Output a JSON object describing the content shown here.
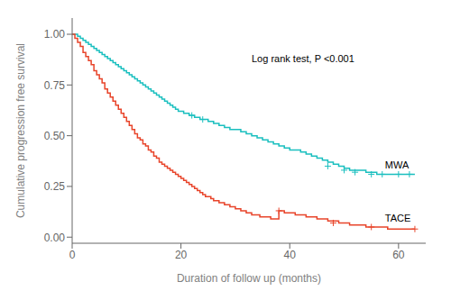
{
  "chart_data": {
    "type": "line",
    "xlabel": "Duration of follow up (months)",
    "ylabel": "Cumulative  progression free survival",
    "xlim": [
      0,
      65
    ],
    "ylim": [
      -0.03,
      1.08
    ],
    "xticks": [
      0,
      20,
      40,
      60
    ],
    "yticks": [
      {
        "value": 0,
        "label": "0.00"
      },
      0.25,
      {
        "value": 0.5,
        "label": "0.50"
      },
      0.75,
      {
        "value": 1,
        "label": "1.00"
      }
    ],
    "series": [
      {
        "type": "step",
        "color": "#1ABFBF",
        "x": [
          0,
          0.5,
          1,
          1.5,
          2,
          2.5,
          3,
          3.5,
          4,
          4.5,
          5,
          5.5,
          6,
          6.5,
          7,
          7.5,
          8,
          8.5,
          9,
          9.5,
          10,
          10.5,
          11,
          11.5,
          12,
          12.5,
          13,
          13.5,
          14,
          14.5,
          15,
          15.5,
          16,
          16.5,
          17,
          17.5,
          18,
          18.5,
          19,
          19.5,
          20,
          20.5,
          21,
          21.5,
          22,
          22.5,
          23,
          23.5,
          24,
          25,
          26,
          27,
          28,
          29,
          30,
          31,
          32,
          33,
          34,
          35,
          36,
          37,
          38,
          39,
          40,
          41,
          42,
          43,
          44,
          45,
          46,
          47,
          48,
          49,
          50,
          51,
          52,
          53,
          54,
          55,
          56,
          57,
          58,
          59,
          60,
          61,
          62,
          63
        ],
        "values": [
          1.0,
          1.0,
          0.99,
          0.98,
          0.97,
          0.96,
          0.95,
          0.94,
          0.93,
          0.92,
          0.91,
          0.9,
          0.89,
          0.88,
          0.87,
          0.86,
          0.85,
          0.84,
          0.83,
          0.82,
          0.81,
          0.8,
          0.79,
          0.78,
          0.77,
          0.76,
          0.75,
          0.74,
          0.73,
          0.72,
          0.71,
          0.7,
          0.69,
          0.68,
          0.67,
          0.66,
          0.65,
          0.64,
          0.63,
          0.62,
          0.62,
          0.61,
          0.61,
          0.6,
          0.6,
          0.59,
          0.59,
          0.58,
          0.58,
          0.57,
          0.56,
          0.55,
          0.54,
          0.53,
          0.53,
          0.52,
          0.51,
          0.5,
          0.49,
          0.48,
          0.47,
          0.46,
          0.45,
          0.44,
          0.43,
          0.43,
          0.42,
          0.41,
          0.4,
          0.39,
          0.38,
          0.37,
          0.36,
          0.35,
          0.34,
          0.33,
          0.33,
          0.33,
          0.32,
          0.32,
          0.31,
          0.31,
          0.31,
          0.31,
          0.31,
          0.31,
          0.31,
          0.31
        ]
      },
      {
        "type": "step",
        "color": "#E8442A",
        "x": [
          0,
          0.5,
          1,
          1.5,
          2,
          2.5,
          3,
          3.5,
          4,
          4.5,
          5,
          5.5,
          6,
          6.5,
          7,
          7.5,
          8,
          8.5,
          9,
          9.5,
          10,
          10.5,
          11,
          11.5,
          12,
          12.5,
          13,
          13.5,
          14,
          14.5,
          15,
          15.5,
          16,
          16.5,
          17,
          17.5,
          18,
          18.5,
          19,
          19.5,
          20,
          20.5,
          21,
          21.5,
          22,
          22.5,
          23,
          23.5,
          24,
          24.5,
          25,
          25.5,
          26,
          26.5,
          27,
          27.5,
          28,
          28.5,
          29,
          29.5,
          30,
          30.5,
          31,
          31.5,
          32,
          32.5,
          33,
          33.5,
          34,
          34.5,
          35,
          35.5,
          36,
          36.5,
          37,
          37.5,
          38,
          38.5,
          39,
          39.5,
          40,
          41,
          42,
          43,
          44,
          45,
          46,
          47,
          48,
          49,
          50,
          51,
          52,
          53,
          54,
          55,
          56,
          57,
          58,
          59,
          60,
          61,
          62,
          63
        ],
        "values": [
          1.0,
          0.98,
          0.96,
          0.94,
          0.91,
          0.89,
          0.87,
          0.85,
          0.82,
          0.8,
          0.78,
          0.76,
          0.73,
          0.71,
          0.69,
          0.67,
          0.65,
          0.63,
          0.61,
          0.59,
          0.57,
          0.55,
          0.53,
          0.51,
          0.49,
          0.48,
          0.46,
          0.45,
          0.43,
          0.42,
          0.4,
          0.39,
          0.37,
          0.36,
          0.35,
          0.34,
          0.33,
          0.32,
          0.31,
          0.3,
          0.29,
          0.28,
          0.27,
          0.26,
          0.25,
          0.24,
          0.23,
          0.22,
          0.21,
          0.2,
          0.2,
          0.19,
          0.18,
          0.18,
          0.17,
          0.17,
          0.16,
          0.16,
          0.15,
          0.15,
          0.14,
          0.14,
          0.13,
          0.13,
          0.12,
          0.12,
          0.11,
          0.11,
          0.11,
          0.1,
          0.1,
          0.1,
          0.1,
          0.09,
          0.09,
          0.09,
          0.13,
          0.13,
          0.12,
          0.12,
          0.12,
          0.11,
          0.11,
          0.1,
          0.1,
          0.09,
          0.09,
          0.08,
          0.08,
          0.07,
          0.07,
          0.06,
          0.06,
          0.06,
          0.05,
          0.05,
          0.05,
          0.05,
          0.04,
          0.04,
          0.04,
          0.04,
          0.04,
          0.04
        ]
      },
      {
        "type": "scatter",
        "marker": "plus",
        "color": "#1ABFBF",
        "x": [
          22,
          24,
          47,
          50,
          52,
          55,
          57,
          60,
          62
        ],
        "values": [
          0.6,
          0.58,
          0.35,
          0.33,
          0.32,
          0.31,
          0.31,
          0.31,
          0.31
        ]
      },
      {
        "type": "scatter",
        "marker": "plus",
        "color": "#E8442A",
        "x": [
          38,
          48,
          55,
          63
        ],
        "values": [
          0.13,
          0.07,
          0.05,
          0.04
        ]
      }
    ],
    "annotations": [
      {
        "text": "Log rank test, P <0.001",
        "x": 33,
        "y": 0.88
      },
      {
        "text": "MWA",
        "x": 57.5,
        "y": 0.355
      },
      {
        "text": "TACE",
        "x": 57.5,
        "y": 0.095
      }
    ]
  }
}
